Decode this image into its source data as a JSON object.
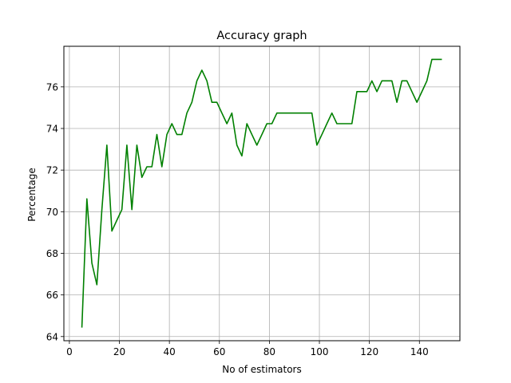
{
  "chart_data": {
    "type": "line",
    "title": "Accuracy graph",
    "xlabel": "No of estimators",
    "ylabel": "Percentage",
    "xlim": [
      -2.2,
      156.2
    ],
    "ylim": [
      63.8,
      77.95
    ],
    "xticks": [
      0,
      20,
      40,
      60,
      80,
      100,
      120,
      140
    ],
    "yticks": [
      64,
      66,
      68,
      70,
      72,
      74,
      76
    ],
    "grid": true,
    "series": [
      {
        "color": "#008000",
        "x": [
          5,
          7,
          9,
          11,
          13,
          15,
          17,
          19,
          21,
          23,
          25,
          27,
          29,
          31,
          33,
          35,
          37,
          39,
          41,
          43,
          45,
          47,
          49,
          51,
          53,
          55,
          57,
          59,
          61,
          63,
          65,
          67,
          69,
          71,
          73,
          75,
          77,
          79,
          81,
          83,
          85,
          87,
          89,
          91,
          93,
          95,
          97,
          99,
          101,
          103,
          105,
          107,
          109,
          111,
          113,
          115,
          117,
          119,
          121,
          123,
          125,
          127,
          129,
          131,
          133,
          135,
          137,
          139,
          141,
          143,
          145,
          147,
          149
        ],
        "y": [
          64.43,
          70.62,
          67.53,
          66.49,
          70.1,
          73.2,
          69.07,
          69.59,
          70.1,
          73.2,
          70.1,
          73.2,
          71.65,
          72.16,
          72.16,
          73.71,
          72.16,
          73.71,
          74.23,
          73.71,
          73.71,
          74.74,
          75.26,
          76.29,
          76.8,
          76.29,
          75.26,
          75.26,
          74.74,
          74.23,
          74.74,
          73.2,
          72.68,
          74.23,
          73.71,
          73.2,
          73.71,
          74.23,
          74.23,
          74.74,
          74.74,
          74.74,
          74.74,
          74.74,
          74.74,
          74.74,
          74.74,
          73.2,
          73.71,
          74.23,
          74.74,
          74.23,
          74.23,
          74.23,
          74.23,
          75.77,
          75.77,
          75.77,
          76.29,
          75.77,
          76.29,
          76.29,
          76.29,
          75.26,
          76.29,
          76.29,
          75.77,
          75.26,
          75.77,
          76.29,
          77.32,
          77.32,
          77.32
        ]
      }
    ]
  }
}
